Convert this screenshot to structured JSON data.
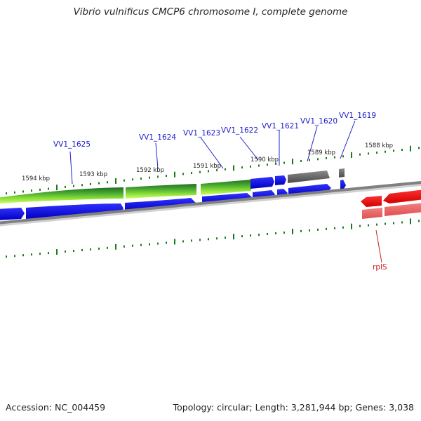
{
  "title": "Vibrio vulnificus CMCP6 chromosome I, complete genome",
  "footer": {
    "accession": "Accession: NC_004459",
    "summary": "Topology: circular; Length: 3,281,944 bp; Genes: 3,038"
  },
  "ruler_labels": [
    "1594 kbp",
    "1593 kbp",
    "1592 kbp",
    "1591 kbp",
    "1590 kbp",
    "1589 kbp",
    "1588 kbp"
  ],
  "gene_labels": [
    "VV1_1625",
    "VV1_1624",
    "VV1_1623",
    "VV1_1622",
    "VV1_1621",
    "VV1_1620",
    "VV1_1619",
    "rplS"
  ],
  "colors": {
    "forward_gene": "#0000e0",
    "reverse_gene": "#ff1a1a",
    "track_green_dark": "#2e8b2e",
    "track_green_light": "#aaff44",
    "track_gray": "#6e6e6e",
    "backbone": "#808080",
    "tick": "#1a7a1a",
    "label_blue": "#1a1acc",
    "label_red": "#cc1a1a"
  }
}
